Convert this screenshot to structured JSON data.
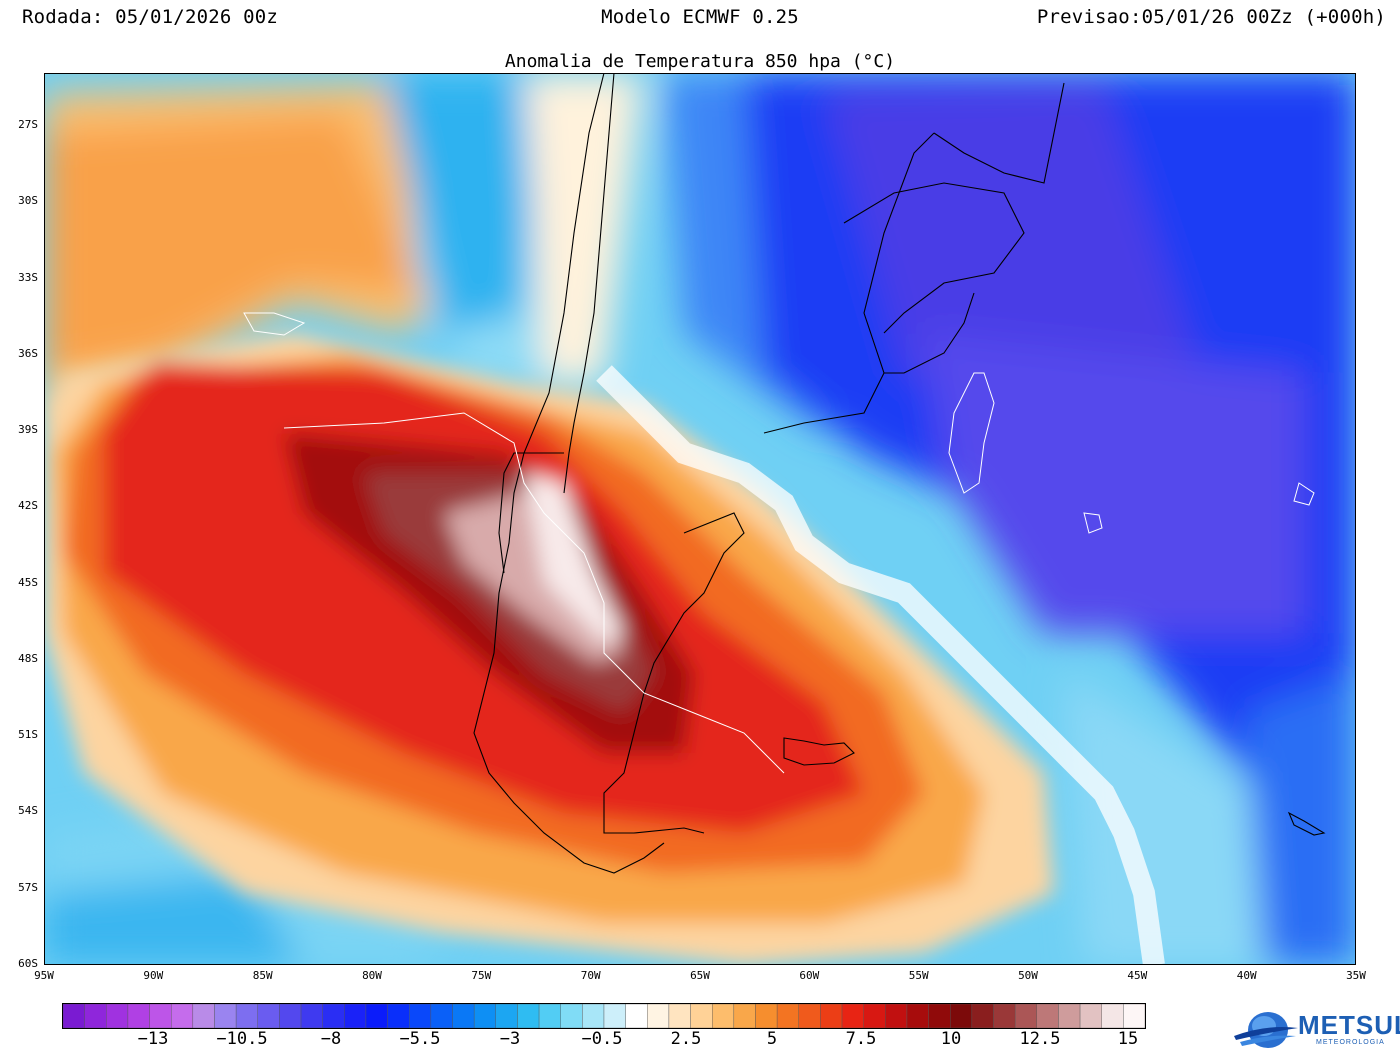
{
  "header": {
    "run": "Rodada: 05/01/2026 00z",
    "model": "Modelo ECMWF 0.25",
    "forecast": "Previsao:05/01/26 00Zz (+000h)"
  },
  "map": {
    "title": "Anomalia de Temperatura 850 hpa (°C)",
    "lat_ticks": [
      "27S",
      "30S",
      "33S",
      "36S",
      "39S",
      "42S",
      "45S",
      "48S",
      "51S",
      "54S",
      "57S",
      "60S"
    ],
    "lon_ticks": [
      "95W",
      "90W",
      "85W",
      "80W",
      "75W",
      "70W",
      "65W",
      "60W",
      "55W",
      "50W",
      "45W",
      "40W",
      "35W"
    ]
  },
  "colorbar": {
    "labels": [
      "−13",
      "−10.5",
      "−8",
      "−5.5",
      "−3",
      "−0.5",
      "2.5",
      "5",
      "7.5",
      "10",
      "12.5",
      "15"
    ],
    "colors": [
      "#7a1bd2",
      "#8f26db",
      "#a032e0",
      "#b040e4",
      "#bd55e8",
      "#c56cec",
      "#b98be8",
      "#9a84f0",
      "#7d6ef0",
      "#6a5cf0",
      "#5348ee",
      "#3f3af0",
      "#2a2ef4",
      "#1a22f8",
      "#0b1cfa",
      "#0a2ffa",
      "#0a48fa",
      "#0a60f8",
      "#0a78f6",
      "#0e8ff4",
      "#1ca6f2",
      "#2fbcf2",
      "#52cdf4",
      "#80dcf6",
      "#a8e6f8",
      "#cdeffa",
      "#ffffff",
      "#fff4e3",
      "#ffe4c0",
      "#ffd297",
      "#fdbd6c",
      "#f9a74a",
      "#f68e2e",
      "#f37422",
      "#f05a1c",
      "#ec3e16",
      "#e82414",
      "#d81812",
      "#c11010",
      "#a70c0c",
      "#900a0a",
      "#7c0a0a",
      "#8a1e1e",
      "#9a3838",
      "#ab5656",
      "#bd7878",
      "#cf9c9c",
      "#e2c2c2",
      "#f4e6e6",
      "#fdf6f6"
    ]
  },
  "logo": {
    "text": "METSUL",
    "subtitle": "METEOROLOGIA"
  }
}
